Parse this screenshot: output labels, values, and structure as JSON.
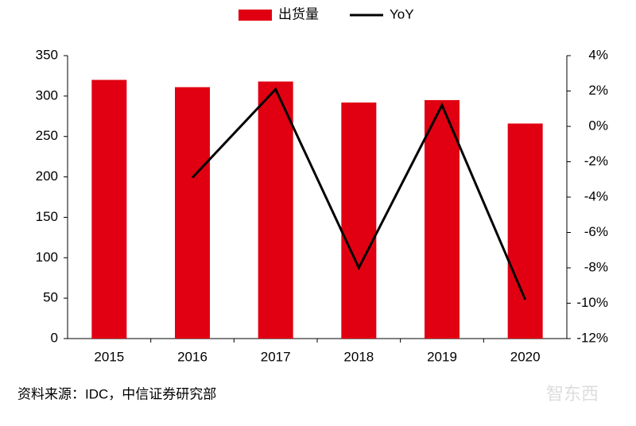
{
  "chart_data": {
    "type": "bar_line",
    "categories": [
      "2015",
      "2016",
      "2017",
      "2018",
      "2019",
      "2020"
    ],
    "series": [
      {
        "name": "出货量",
        "type": "bar",
        "color": "#e00012",
        "values": [
          320,
          311,
          318,
          292,
          295,
          266
        ]
      },
      {
        "name": "YoY",
        "type": "line",
        "axis": "y2",
        "color": "#000000",
        "values": [
          null,
          -2.9,
          2.1,
          -8.0,
          1.2,
          -9.8
        ]
      }
    ],
    "ylim": [
      0,
      350
    ],
    "yticks": [
      0,
      50,
      100,
      150,
      200,
      250,
      300,
      350
    ],
    "y2lim": [
      -12,
      4
    ],
    "y2ticks": [
      {
        "value": -12,
        "label": "-12%"
      },
      {
        "value": -10,
        "label": "-10%"
      },
      {
        "value": -8,
        "label": "-8%"
      },
      {
        "value": -6,
        "label": "-6%"
      },
      {
        "value": -4,
        "label": "-4%"
      },
      {
        "value": -2,
        "label": "-2%"
      },
      {
        "value": 0,
        "label": "0%"
      },
      {
        "value": 2,
        "label": "2%"
      },
      {
        "value": 4,
        "label": "4%"
      }
    ],
    "source": "资料来源：IDC，中信证券研究部",
    "watermark": "智东西"
  }
}
